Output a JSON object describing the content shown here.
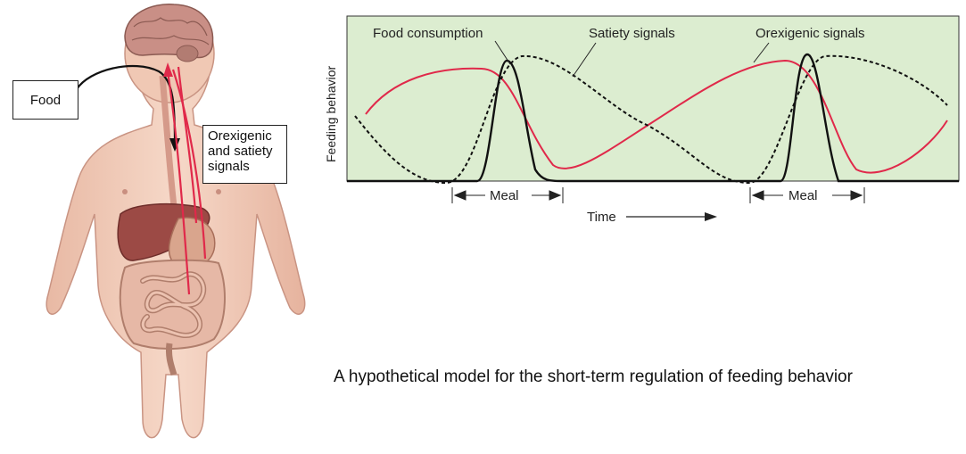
{
  "figure": {
    "food_label": "Food",
    "signals_label_lines": [
      "Orexigenic",
      "and satiety",
      "signals"
    ],
    "caption": "A hypothetical model for the short-term regulation of feeding behavior"
  },
  "chart": {
    "legend": {
      "food_consumption": "Food consumption",
      "satiety_signals": "Satiety signals",
      "orexigenic_signals": "Orexigenic signals"
    },
    "ylabel": "Feeding behavior",
    "xlabel": "Time",
    "meal_label": "Meal",
    "colors": {
      "background": "#dcedd0",
      "food_line": "#111111",
      "satiety_line": "#111111",
      "orexigenic_line": "#e0294a"
    }
  }
}
